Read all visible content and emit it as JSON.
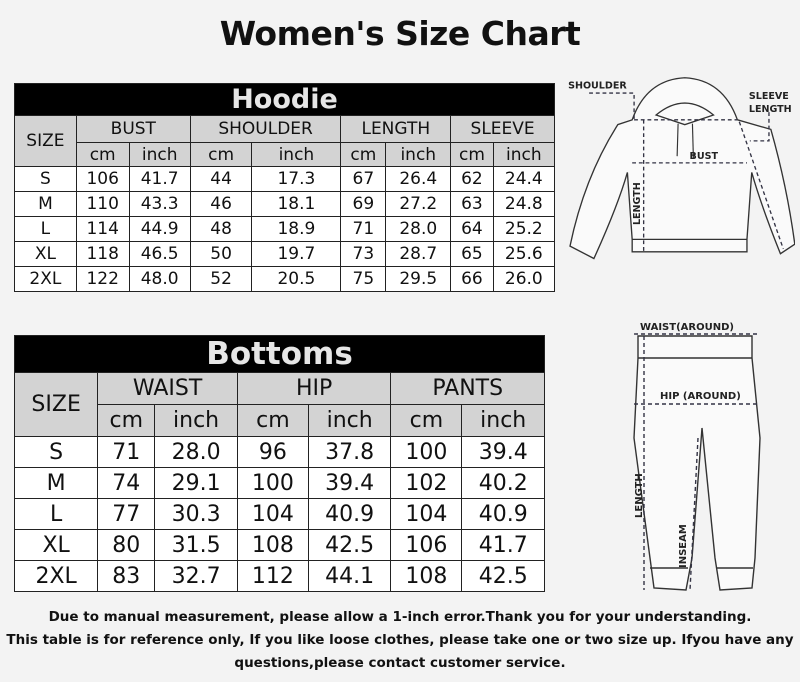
{
  "title": "Women's Size Chart",
  "hoodie": {
    "caption": "Hoodie",
    "size_header": "SIZE",
    "groups": [
      "BUST",
      "SHOULDER",
      "LENGTH",
      "SLEEVE"
    ],
    "units": [
      "cm",
      "inch"
    ],
    "rows": [
      [
        "S",
        "106",
        "41.7",
        "44",
        "17.3",
        "67",
        "26.4",
        "62",
        "24.4"
      ],
      [
        "M",
        "110",
        "43.3",
        "46",
        "18.1",
        "69",
        "27.2",
        "63",
        "24.8"
      ],
      [
        "L",
        "114",
        "44.9",
        "48",
        "18.9",
        "71",
        "28.0",
        "64",
        "25.2"
      ],
      [
        "XL",
        "118",
        "46.5",
        "50",
        "19.7",
        "73",
        "28.7",
        "65",
        "25.6"
      ],
      [
        "2XL",
        "122",
        "48.0",
        "52",
        "20.5",
        "75",
        "29.5",
        "66",
        "26.0"
      ]
    ],
    "diagram_labels": {
      "shoulder": "SHOULDER",
      "sleeve1": "SLEEVE",
      "sleeve2": "LENGTH",
      "bust": "BUST",
      "length": "LENGTH"
    }
  },
  "bottoms": {
    "caption": "Bottoms",
    "size_header": "SIZE",
    "groups": [
      "WAIST",
      "HIP",
      "PANTS"
    ],
    "units": [
      "cm",
      "inch"
    ],
    "rows": [
      [
        "S",
        "71",
        "28.0",
        "96",
        "37.8",
        "100",
        "39.4"
      ],
      [
        "M",
        "74",
        "29.1",
        "100",
        "39.4",
        "102",
        "40.2"
      ],
      [
        "L",
        "77",
        "30.3",
        "104",
        "40.9",
        "104",
        "40.9"
      ],
      [
        "XL",
        "80",
        "31.5",
        "108",
        "42.5",
        "106",
        "41.7"
      ],
      [
        "2XL",
        "83",
        "32.7",
        "112",
        "44.1",
        "108",
        "42.5"
      ]
    ],
    "diagram_labels": {
      "waist": "WAIST(AROUND)",
      "hip": "HIP (AROUND)",
      "length": "LENGTH",
      "inseam": "INSEAM"
    }
  },
  "footer": [
    "Due to manual measurement, please allow a 1-inch error.Thank you for your understanding.",
    "This table is for reference only, If you like loose clothes, please take one or two size up. Ifyou have any",
    "questions,please contact customer service."
  ]
}
